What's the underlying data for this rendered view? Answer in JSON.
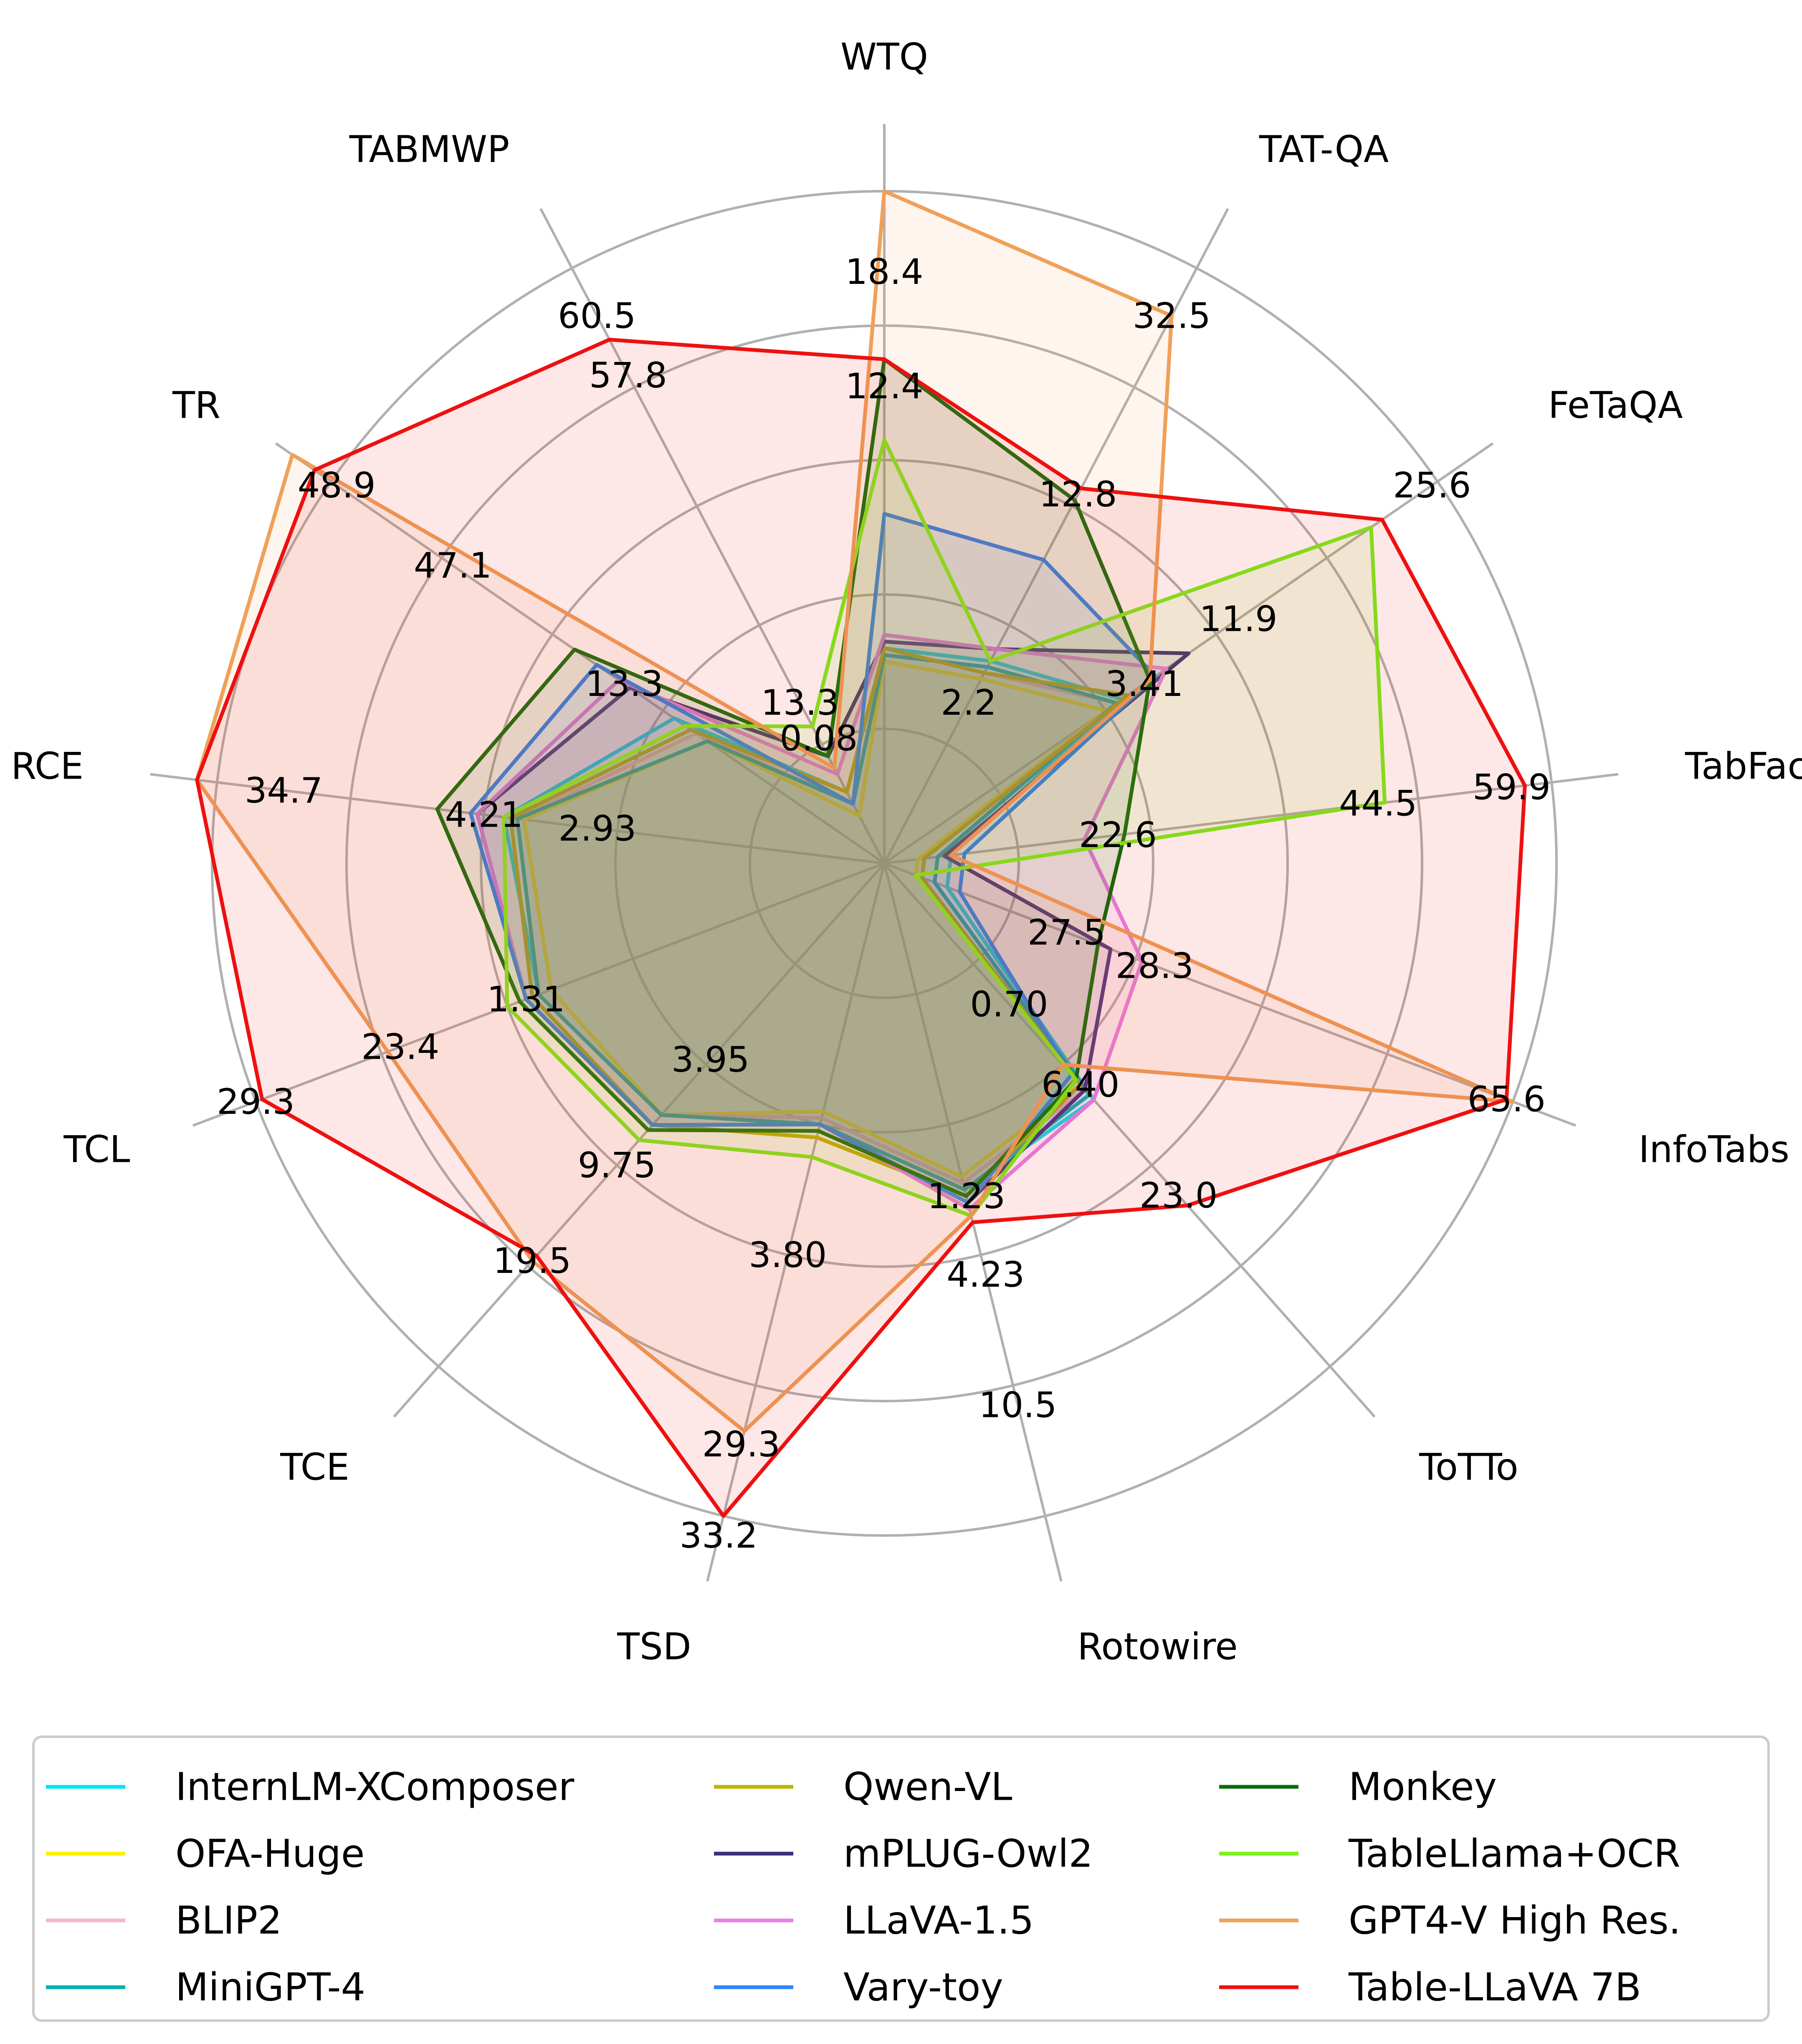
{
  "chart_data": {
    "type": "radar",
    "axes": [
      "WTQ",
      "TAT-QA",
      "FeTaQA",
      "TabFact",
      "InfoTabs",
      "ToTTo",
      "Rotowire",
      "TSD",
      "TCE",
      "TCL",
      "RCE",
      "TR",
      "TABMWP"
    ],
    "rings": [
      0.2,
      0.4,
      0.6,
      0.8,
      1.0
    ],
    "range": [
      0,
      1
    ],
    "grid": true,
    "legend_position": "bottom",
    "value_labels": [
      {
        "axis": "WTQ",
        "labels": [
          {
            "r": 0.88,
            "text": "18.4"
          },
          {
            "r": 0.71,
            "text": "12.4"
          }
        ]
      },
      {
        "axis": "TAT-QA",
        "labels": [
          {
            "r": 0.92,
            "text": "32.5"
          },
          {
            "r": 0.62,
            "text": "12.8"
          },
          {
            "r": 0.27,
            "text": "2.2"
          }
        ]
      },
      {
        "axis": "FeTaQA",
        "labels": [
          {
            "r": 0.99,
            "text": "25.6"
          },
          {
            "r": 0.64,
            "text": "11.9"
          },
          {
            "r": 0.47,
            "text": "3.41"
          }
        ]
      },
      {
        "axis": "TabFact",
        "labels": [
          {
            "r": 0.94,
            "text": "59.9"
          },
          {
            "r": 0.74,
            "text": "44.5"
          },
          {
            "r": 0.35,
            "text": "22.6"
          }
        ]
      },
      {
        "axis": "InfoTabs",
        "labels": [
          {
            "r": 0.99,
            "text": "65.6"
          },
          {
            "r": 0.43,
            "text": "28.3"
          },
          {
            "r": 0.29,
            "text": "27.5"
          }
        ]
      },
      {
        "axis": "ToTTo",
        "labels": [
          {
            "r": 0.66,
            "text": "23.0"
          },
          {
            "r": 0.44,
            "text": "6.40"
          },
          {
            "r": 0.28,
            "text": "0.70"
          }
        ]
      },
      {
        "axis": "Rotowire",
        "labels": [
          {
            "r": 0.83,
            "text": "10.5"
          },
          {
            "r": 0.63,
            "text": "4.23"
          },
          {
            "r": 0.51,
            "text": "1.23"
          }
        ]
      },
      {
        "axis": "TSD",
        "labels": [
          {
            "r": 1.03,
            "text": "33.2"
          },
          {
            "r": 0.89,
            "text": "29.3"
          },
          {
            "r": 0.6,
            "text": "3.80"
          }
        ]
      },
      {
        "axis": "TCE",
        "labels": [
          {
            "r": 0.79,
            "text": "19.5"
          },
          {
            "r": 0.6,
            "text": "9.75"
          },
          {
            "r": 0.39,
            "text": "3.95"
          }
        ]
      },
      {
        "axis": "TCL",
        "labels": [
          {
            "r": 1.0,
            "text": "29.3"
          },
          {
            "r": 0.77,
            "text": "23.4"
          },
          {
            "r": 0.57,
            "text": "1.31"
          }
        ]
      },
      {
        "axis": "RCE",
        "labels": [
          {
            "r": 0.9,
            "text": "34.7"
          },
          {
            "r": 0.6,
            "text": "4.21"
          },
          {
            "r": 0.43,
            "text": "2.93"
          }
        ]
      },
      {
        "axis": "TR",
        "labels": [
          {
            "r": 0.99,
            "text": "48.9"
          },
          {
            "r": 0.78,
            "text": "47.1"
          },
          {
            "r": 0.47,
            "text": "13.3"
          }
        ]
      },
      {
        "axis": "TABMWP",
        "labels": [
          {
            "r": 0.92,
            "text": "60.5"
          },
          {
            "r": 0.82,
            "text": "57.8"
          },
          {
            "r": 0.27,
            "text": "13.3"
          },
          {
            "r": 0.21,
            "text": "0.08"
          }
        ]
      }
    ],
    "series": [
      {
        "name": "InternLM-XComposer",
        "color": "#00e5ee",
        "values": [
          0.32,
          0.34,
          0.43,
          0.1,
          0.1,
          0.47,
          0.5,
          0.4,
          0.5,
          0.55,
          0.57,
          0.38,
          0.12
        ]
      },
      {
        "name": "OFA-Huge",
        "color": "#ffee00",
        "values": [
          0.3,
          0.31,
          0.4,
          0.05,
          0.05,
          0.44,
          0.48,
          0.38,
          0.5,
          0.53,
          0.54,
          0.32,
          0.08
        ]
      },
      {
        "name": "BLIP2",
        "color": "#f8b8c8",
        "values": [
          0.32,
          0.32,
          0.42,
          0.06,
          0.06,
          0.45,
          0.49,
          0.39,
          0.5,
          0.55,
          0.55,
          0.34,
          0.1
        ]
      },
      {
        "name": "MiniGPT-4",
        "color": "#00b2b2",
        "values": [
          0.31,
          0.33,
          0.42,
          0.08,
          0.08,
          0.46,
          0.5,
          0.4,
          0.5,
          0.55,
          0.55,
          0.32,
          0.1
        ]
      },
      {
        "name": "Qwen-VL",
        "color": "#bbb400",
        "values": [
          0.32,
          0.32,
          0.44,
          0.06,
          0.06,
          0.44,
          0.51,
          0.42,
          0.52,
          0.56,
          0.56,
          0.35,
          0.12
        ]
      },
      {
        "name": "mPLUG-Owl2",
        "color": "#3a2f78",
        "values": [
          0.33,
          0.36,
          0.55,
          0.09,
          0.36,
          0.45,
          0.52,
          0.4,
          0.52,
          0.57,
          0.61,
          0.46,
          0.18
        ]
      },
      {
        "name": "LLaVA-1.5",
        "color": "#e880e8",
        "values": [
          0.34,
          0.36,
          0.51,
          0.3,
          0.41,
          0.47,
          0.53,
          0.4,
          0.52,
          0.57,
          0.61,
          0.48,
          0.15
        ]
      },
      {
        "name": "Vary-toy",
        "color": "#2e86ff",
        "values": [
          0.52,
          0.51,
          0.49,
          0.12,
          0.12,
          0.42,
          0.52,
          0.4,
          0.52,
          0.57,
          0.62,
          0.52,
          0.1
        ]
      },
      {
        "name": "Monkey",
        "color": "#0a6e0a",
        "values": [
          0.75,
          0.61,
          0.48,
          0.36,
          0.34,
          0.43,
          0.51,
          0.41,
          0.53,
          0.58,
          0.67,
          0.56,
          0.18
        ]
      },
      {
        "name": "TableLlama+OCR",
        "color": "#7cf01c",
        "values": [
          0.63,
          0.34,
          0.88,
          0.75,
          0.05,
          0.43,
          0.54,
          0.45,
          0.55,
          0.6,
          0.57,
          0.36,
          0.23
        ]
      },
      {
        "name": "GPT4-V High Res.",
        "color": "#f0a058",
        "values": [
          1.0,
          0.92,
          0.48,
          0.1,
          1.0,
          0.4,
          0.54,
          0.87,
          0.79,
          0.79,
          1.03,
          1.07,
          0.16
        ]
      },
      {
        "name": "Table-LLaVA 7B",
        "color": "#ee1010",
        "values": [
          0.75,
          0.63,
          0.9,
          0.96,
          0.99,
          0.68,
          0.55,
          1.0,
          0.78,
          0.99,
          1.03,
          1.03,
          0.88
        ]
      }
    ]
  }
}
